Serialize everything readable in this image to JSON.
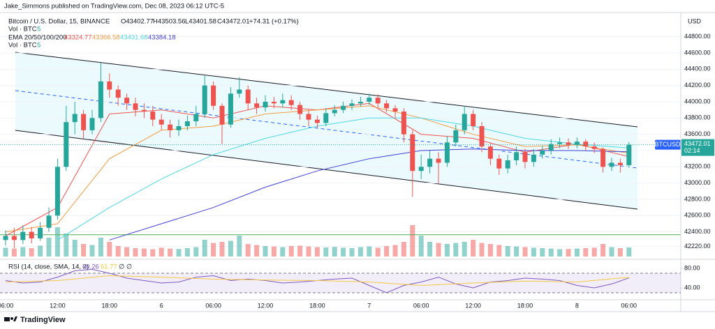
{
  "header": {
    "publisher": "Jake_Simmons published on TradingView.com, Dec 08, 2023 06:12 UTC-5",
    "symbol": "Bitcoin / U.S. Dollar, 15, BINANCE",
    "ohlc": [
      "O43402.77",
      "H43503.56",
      "L43401.58",
      "C43472.01"
    ],
    "change": "+74.31 (+0.17%)",
    "vol_label": "Vol · BTC",
    "vol_length": "5",
    "ema_label": "EMA 20/50/100/200",
    "vol_label_2": "Vol · BTC",
    "vol_length_2": "5"
  },
  "footer": {
    "brand": "TradingView"
  },
  "chart_data": [
    {
      "type": "candlestick",
      "axis_unit": "USD",
      "symbol_tag": "BTCUSD",
      "countdown": "02:14",
      "up_color": "#26a69a",
      "down_color": "#ef5350",
      "x_labels": [
        "06:00",
        "12:00",
        "18:00",
        "6",
        "06:00",
        "12:00",
        "18:00",
        "7",
        "06:00",
        "12:00",
        "18:00",
        "8",
        "06:00"
      ],
      "open": [
        42300,
        42350,
        42300,
        42400,
        42320,
        42450,
        42600,
        43200,
        43750,
        43850,
        43650,
        43800,
        44250,
        44150,
        44050,
        43980,
        43900,
        43880,
        43780,
        43720,
        43650,
        43700,
        43760,
        43850,
        44200,
        43950,
        43720,
        44100,
        44150,
        43980,
        43930,
        44000,
        43980,
        44020,
        43960,
        43850,
        43780,
        43740,
        43860,
        43900,
        43950,
        43980,
        44000,
        44050,
        43980,
        43920,
        43880,
        43600,
        43150,
        43200,
        43300,
        43250,
        43500,
        43650,
        43850,
        43700,
        43450,
        43300,
        43180,
        43280,
        43380,
        43260,
        43350,
        43400,
        43480,
        43500,
        43470,
        43510,
        43450,
        43420,
        43200,
        43250,
        43220
      ],
      "high": [
        42420,
        42450,
        42480,
        42460,
        42520,
        42700,
        43300,
        43950,
        44000,
        43900,
        43900,
        44480,
        44350,
        44200,
        44100,
        44050,
        43980,
        43950,
        43850,
        43780,
        43780,
        43830,
        43950,
        44320,
        44250,
        43980,
        44180,
        44300,
        44200,
        44050,
        44080,
        44060,
        44100,
        44080,
        44000,
        43900,
        43830,
        43920,
        43960,
        44000,
        44030,
        44060,
        44100,
        44090,
        44020,
        43960,
        43920,
        43650,
        43350,
        43400,
        43380,
        43580,
        43720,
        43950,
        43900,
        43750,
        43500,
        43350,
        43350,
        43450,
        43420,
        43420,
        43460,
        43540,
        43560,
        43550,
        43560,
        43540,
        43500,
        43440,
        43310,
        43300,
        43503.56
      ],
      "low": [
        42230,
        42200,
        42250,
        42260,
        42290,
        42400,
        42550,
        43150,
        43600,
        43550,
        43600,
        43750,
        44050,
        43950,
        43900,
        43820,
        43800,
        43700,
        43650,
        43560,
        43580,
        43650,
        43700,
        43800,
        43900,
        43480,
        43680,
        44050,
        43900,
        43850,
        43880,
        43920,
        43930,
        43900,
        43780,
        43700,
        43680,
        43700,
        43820,
        43860,
        43900,
        43940,
        43960,
        43930,
        43870,
        43800,
        43500,
        42830,
        43050,
        43120,
        43000,
        43200,
        43450,
        43600,
        43650,
        43380,
        43220,
        43100,
        43120,
        43220,
        43180,
        43200,
        43300,
        43350,
        43430,
        43420,
        43430,
        43400,
        43370,
        43130,
        43150,
        43130,
        43190
      ],
      "close": [
        42350,
        42300,
        42400,
        42320,
        42450,
        42600,
        43200,
        43750,
        43850,
        43650,
        43800,
        44250,
        44150,
        44050,
        43980,
        43900,
        43880,
        43780,
        43720,
        43650,
        43700,
        43760,
        43850,
        44200,
        43950,
        43720,
        44100,
        44150,
        43980,
        43930,
        44000,
        43980,
        44020,
        43960,
        43850,
        43780,
        43740,
        43860,
        43900,
        43950,
        43980,
        44000,
        44050,
        43980,
        43920,
        43880,
        43600,
        43150,
        43200,
        43300,
        43250,
        43500,
        43650,
        43850,
        43700,
        43450,
        43300,
        43180,
        43280,
        43380,
        43260,
        43350,
        43400,
        43480,
        43500,
        43470,
        43510,
        43450,
        43420,
        43200,
        43250,
        43220,
        43472.01
      ],
      "volume": [
        420,
        380,
        450,
        400,
        520,
        900,
        1400,
        1100,
        800,
        600,
        550,
        900,
        700,
        500,
        450,
        400,
        380,
        350,
        420,
        380,
        360,
        400,
        450,
        800,
        650,
        700,
        750,
        1000,
        600,
        550,
        500,
        480,
        450,
        500,
        520,
        480,
        450,
        430,
        460,
        420,
        400,
        450,
        480,
        420,
        500,
        550,
        700,
        1500,
        1000,
        700,
        650,
        600,
        650,
        700,
        800,
        650,
        600,
        550,
        500,
        480,
        450,
        420,
        400,
        380,
        350,
        360,
        380,
        400,
        420,
        600,
        450,
        400,
        430
      ],
      "series": [
        {
          "name": "EMA 20",
          "color": "#f0524f",
          "values": [
            42350,
            42700,
            43850,
            43900,
            43800,
            43950,
            43900,
            43980,
            43600,
            43550,
            43380,
            43480,
            43324.77
          ]
        },
        {
          "name": "EMA 50",
          "color": "#f59b42",
          "values": [
            42400,
            42500,
            43300,
            43650,
            43700,
            43850,
            43900,
            43950,
            43800,
            43600,
            43450,
            43470,
            43366.58
          ]
        },
        {
          "name": "EMA 100",
          "color": "#4dd8e6",
          "values": [
            null,
            42300,
            42700,
            43050,
            43350,
            43550,
            43700,
            43800,
            43800,
            43700,
            43550,
            43480,
            43431.68
          ]
        },
        {
          "name": "EMA 200",
          "color": "#3f3fd6",
          "values": [
            null,
            null,
            42300,
            42500,
            42700,
            42950,
            43150,
            43300,
            43400,
            43420,
            43400,
            43400,
            43384.18
          ]
        }
      ],
      "hline": 42365,
      "hline_color": "#4caf50",
      "ylim": [
        42080,
        45080
      ],
      "yticks": [
        {
          "value": 44800,
          "label": "44800.00"
        },
        {
          "value": 44600,
          "label": "44600.00"
        },
        {
          "value": 44400,
          "label": "44400.00"
        },
        {
          "value": 44200,
          "label": "44200.00"
        },
        {
          "value": 44000,
          "label": "44000.00"
        },
        {
          "value": 43800,
          "label": "43800.00"
        },
        {
          "value": 43600,
          "label": "43600.00"
        },
        {
          "value": 43400,
          "label": "43400.00"
        },
        {
          "value": 43200,
          "label": "43200.00"
        },
        {
          "value": 43000,
          "label": "43000.00"
        },
        {
          "value": 42800,
          "label": "42800.00"
        },
        {
          "value": 42600,
          "label": "42600.00"
        },
        {
          "value": 42400,
          "label": "42400.00"
        },
        {
          "value": 42220,
          "label": "42220.00"
        }
      ]
    },
    {
      "type": "line",
      "title": "RSI (14, close, SMA, 14, 2)",
      "extra": "∅ ∅",
      "series": [
        {
          "name": "RSI",
          "color": "#7e57c2",
          "values": [
            55,
            50,
            52,
            62,
            75,
            78,
            70,
            60,
            55,
            50,
            52,
            62,
            65,
            55,
            58,
            55,
            50,
            52,
            55,
            58,
            60,
            45,
            30,
            45,
            52,
            62,
            48,
            40,
            52,
            55,
            60,
            58,
            55,
            45,
            40,
            48,
            60.26
          ]
        },
        {
          "name": "RSI-based MA",
          "color": "#f5c842",
          "values": [
            52,
            55,
            65,
            62,
            58,
            56,
            55,
            52,
            45,
            50,
            54,
            52,
            61.77
          ]
        }
      ],
      "band": [
        30,
        70
      ],
      "ylim": [
        20,
        100
      ],
      "yticks": [
        {
          "value": 80,
          "label": "80.00"
        },
        {
          "value": 40,
          "label": "40.00"
        }
      ]
    }
  ]
}
